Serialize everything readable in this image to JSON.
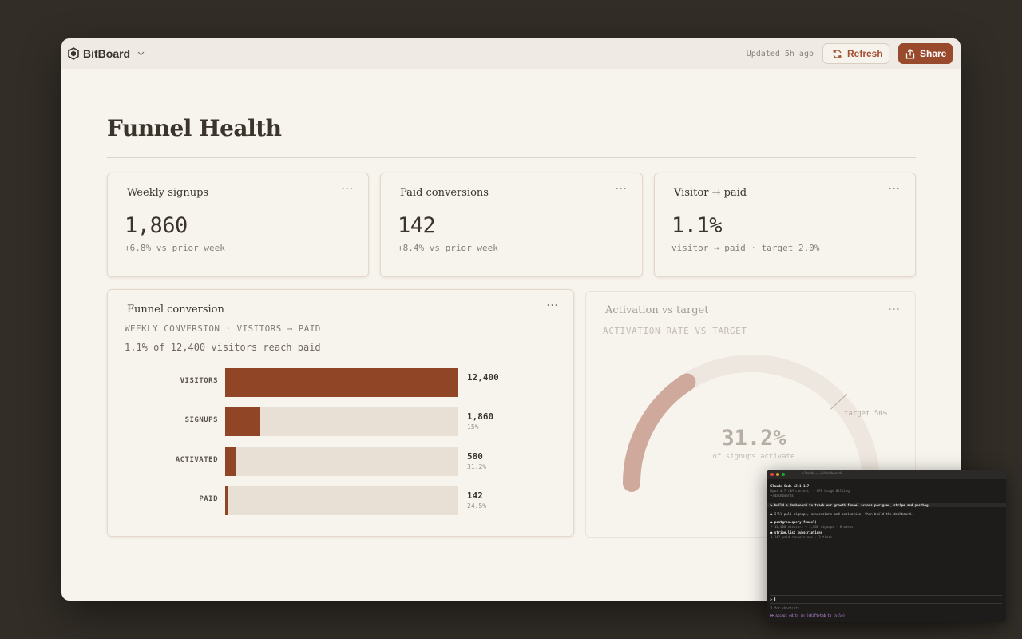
{
  "app": {
    "name": "BitBoard",
    "updated_text": "Updated 5h ago",
    "refresh_label": "Refresh",
    "share_label": "Share"
  },
  "page": {
    "title": "Funnel Health"
  },
  "kpis": [
    {
      "title": "Weekly signups",
      "value": "1,860",
      "sub": "+6.8% vs prior week"
    },
    {
      "title": "Paid conversions",
      "value": "142",
      "sub": "+8.4% vs prior week"
    },
    {
      "title": "Visitor → paid",
      "value": "1.1%",
      "sub": "visitor → paid · target 2.0%"
    }
  ],
  "menu_glyph": "···",
  "funnel": {
    "title": "Funnel conversion",
    "subtitle": "WEEKLY CONVERSION · VISITORS → PAID",
    "summary": "1.1% of 12,400 visitors reach paid",
    "rows": [
      {
        "label": "VISITORS",
        "value": "12,400",
        "pct": "",
        "fraction": 1.0
      },
      {
        "label": "SIGNUPS",
        "value": "1,860",
        "pct": "15%",
        "fraction": 0.15
      },
      {
        "label": "ACTIVATED",
        "value": "580",
        "pct": "31.2%",
        "fraction": 0.047
      },
      {
        "label": "PAID",
        "value": "142",
        "pct": "24.5%",
        "fraction": 0.011
      }
    ]
  },
  "activation": {
    "title": "Activation vs target",
    "subtitle": "ACTIVATION RATE VS TARGET",
    "value": "31.2%",
    "caption": "of signups activate",
    "target_label": "target 50%",
    "value_fraction": 0.312,
    "target_fraction": 0.5
  },
  "terminal": {
    "title": "claude — ~/dashboards",
    "lines": [
      "Claude Code v2.1.117",
      "Opus 4.7 (1M context) · API Usage Billing",
      "~/dashboards",
      "> build a dashboard to track our growth funnel across postgres, stripe and posthog",
      "● I'll pull signups, conversions and activation, then build the dashboard.",
      "● postgres.query(funnel)",
      "  └ 12,400 visitors → 1,860 signups · 8 weeks",
      "● stripe.list_subscriptions",
      "  └ 142 paid conversions · 3 tiers",
      "> ▌",
      "? for shortcuts",
      "⏵⏵ accept edits on (shift+tab to cycle)"
    ]
  },
  "colors": {
    "accent": "#9a4a2c",
    "bar_fill": "#8f4526",
    "bar_track": "#e8dfd5",
    "page_bg": "#f7f4ee",
    "desktop_bg": "#322d27"
  }
}
